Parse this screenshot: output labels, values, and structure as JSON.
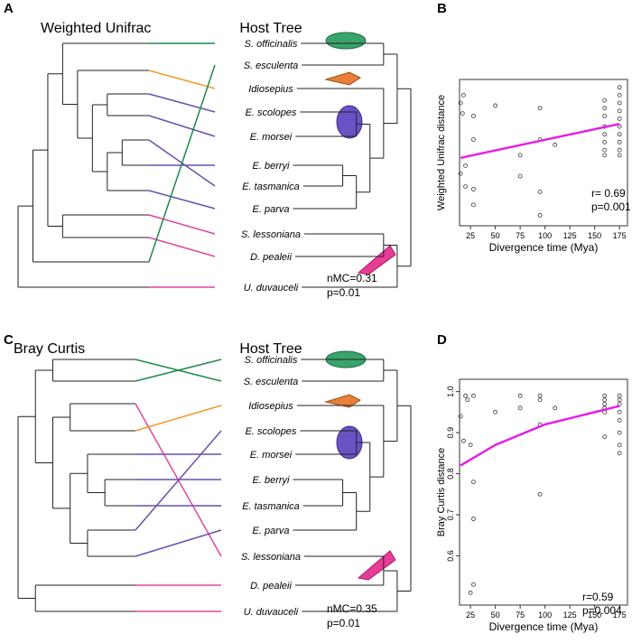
{
  "panel_labels": [
    "A",
    "B",
    "C",
    "D"
  ],
  "tanglegrams": [
    {
      "left_title": "Weighted Unifrac",
      "right_title": "Host Tree",
      "species": [
        "S. officinalis",
        "S. esculenta",
        "Idiosepius",
        "E. scolopes",
        "E. morsei",
        "E. berryi",
        "E. tasmanica",
        "E. parva",
        "S. lessoniana",
        "D. pealeii",
        "U. duvauceli"
      ],
      "stats": [
        "nMC=0.31",
        "p=0.01"
      ]
    },
    {
      "left_title": "Bray Curtis",
      "right_title": "Host Tree",
      "species": [
        "S. officinalis",
        "S. esculenta",
        "Idiosepius",
        "E. scolopes",
        "E. morsei",
        "E. berryi",
        "E. tasmanica",
        "E. parva",
        "S. lessoniana",
        "D. pealeii",
        "U. duvauceli"
      ],
      "stats": [
        "nMC=0.35",
        "p=0.01"
      ]
    }
  ],
  "chart_data": [
    {
      "type": "scatter",
      "xlabel": "Divergence time (Mya)",
      "ylabel": "Weighted Unifrac distance",
      "xlim": [
        14,
        183
      ],
      "ylim": [
        0.1,
        0.66
      ],
      "xticks": [
        25,
        50,
        75,
        100,
        125,
        150,
        175
      ],
      "annotations": [
        "r= 0.69",
        "p=0.001"
      ],
      "series": [
        {
          "type": "scatter",
          "color": "#333333",
          "x": [
            15,
            18,
            17,
            20,
            15,
            20,
            28,
            28,
            28,
            28,
            50,
            75,
            75,
            95,
            95,
            95,
            95,
            110,
            160,
            160,
            160,
            160,
            160,
            160,
            160,
            160,
            175,
            175,
            175,
            175,
            175,
            175,
            175,
            175,
            175,
            175
          ],
          "values": [
            0.57,
            0.6,
            0.53,
            0.33,
            0.3,
            0.25,
            0.52,
            0.43,
            0.24,
            0.18,
            0.56,
            0.37,
            0.29,
            0.55,
            0.43,
            0.23,
            0.14,
            0.41,
            0.58,
            0.55,
            0.52,
            0.48,
            0.45,
            0.42,
            0.39,
            0.37,
            0.63,
            0.6,
            0.57,
            0.54,
            0.51,
            0.48,
            0.45,
            0.42,
            0.39,
            0.37
          ]
        },
        {
          "type": "line",
          "color": "#e61ee6",
          "x": [
            15,
            175
          ],
          "values": [
            0.36,
            0.49
          ]
        }
      ]
    },
    {
      "type": "scatter",
      "xlabel": "Divergence time (Mya)",
      "ylabel": "Bray Curtis distance",
      "xlim": [
        14,
        183
      ],
      "ylim": [
        0.48,
        1.03
      ],
      "xticks": [
        25,
        50,
        75,
        100,
        125,
        150,
        175
      ],
      "yticks": [
        0.6,
        0.7,
        0.8,
        0.9,
        {
          "value": 1,
          "label": "1.0"
        }
      ],
      "annotations": [
        "r=0.59",
        "p=0.004"
      ],
      "series": [
        {
          "type": "scatter",
          "color": "#333333",
          "x": [
            15,
            18,
            20,
            22,
            25,
            25,
            28,
            28,
            28,
            28,
            50,
            75,
            75,
            95,
            95,
            95,
            95,
            110,
            160,
            160,
            160,
            160,
            160,
            160,
            175,
            175,
            175,
            175,
            175,
            175,
            175,
            175
          ],
          "values": [
            0.94,
            0.88,
            0.99,
            0.98,
            0.51,
            0.87,
            0.53,
            0.69,
            0.78,
            0.99,
            0.95,
            0.99,
            0.96,
            0.99,
            0.98,
            0.92,
            0.75,
            0.96,
            0.99,
            0.98,
            0.97,
            0.96,
            0.95,
            0.89,
            0.99,
            0.98,
            0.97,
            0.95,
            0.93,
            0.9,
            0.87,
            0.85
          ]
        },
        {
          "type": "line",
          "color": "#e61ee6",
          "x": [
            15,
            50,
            100,
            150,
            175
          ],
          "values": [
            0.82,
            0.87,
            0.92,
            0.95,
            0.965
          ]
        }
      ]
    }
  ]
}
